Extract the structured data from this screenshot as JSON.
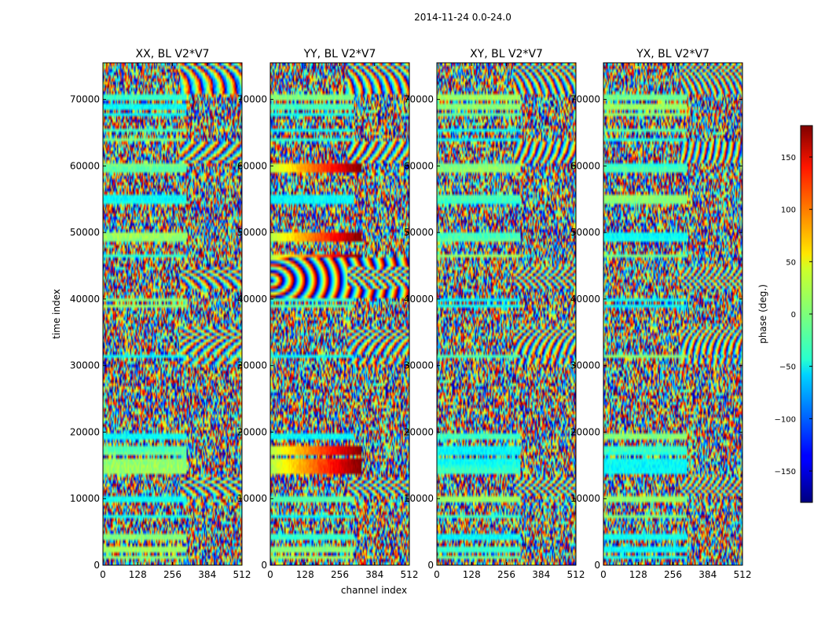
{
  "figure_title": "2014-11-24 0.0-24.0",
  "chart_data": {
    "type": "heatmap",
    "title": "2014-11-24 0.0-24.0",
    "xlabel": "channel index",
    "ylabel": "time index",
    "xlim": [
      0,
      512
    ],
    "ylim": [
      0,
      75500
    ],
    "x_ticks": [
      0,
      128,
      256,
      384,
      512
    ],
    "y_ticks": [
      0,
      10000,
      20000,
      30000,
      40000,
      50000,
      60000,
      70000
    ],
    "panels": [
      {
        "title": "XX, BL V2*V7"
      },
      {
        "title": "YY, BL V2*V7"
      },
      {
        "title": "XY, BL V2*V7"
      },
      {
        "title": "YX, BL V2*V7"
      }
    ],
    "colorbar": {
      "label": "phase (deg.)",
      "range": [
        -180,
        180
      ],
      "ticks": [
        -150,
        -100,
        -50,
        0,
        50,
        100,
        150
      ],
      "colormap": "jet"
    }
  }
}
